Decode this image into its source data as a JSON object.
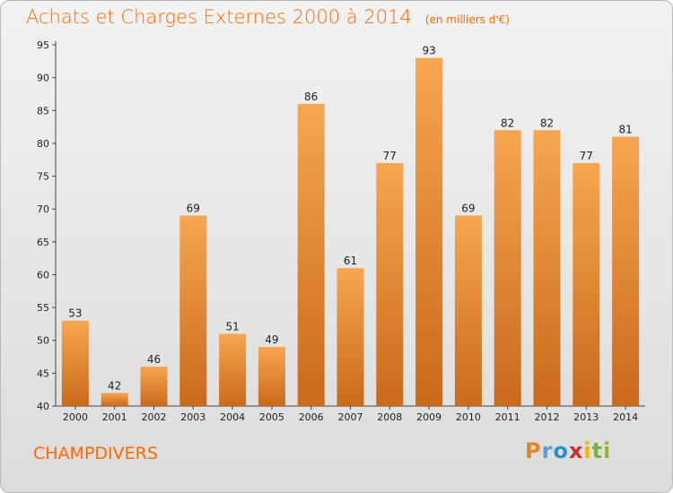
{
  "chart_data": {
    "type": "bar",
    "title": "Achats et Charges Externes 2000 à 2014",
    "subtitle": "(en milliers d'€)",
    "categories": [
      "2000",
      "2001",
      "2002",
      "2003",
      "2004",
      "2005",
      "2006",
      "2007",
      "2008",
      "2009",
      "2010",
      "2011",
      "2012",
      "2013",
      "2014"
    ],
    "values": [
      53,
      42,
      46,
      69,
      51,
      49,
      86,
      61,
      77,
      93,
      69,
      82,
      82,
      77,
      81
    ],
    "ylim": [
      40,
      95
    ],
    "yticks": [
      40,
      45,
      50,
      55,
      60,
      65,
      70,
      75,
      80,
      85,
      90,
      95
    ],
    "grid": false,
    "xlabel": "",
    "ylabel": ""
  },
  "commune": "CHAMPDIVERS",
  "logo": {
    "letters": [
      "P",
      "r",
      "o",
      "x",
      "i",
      "t",
      "i"
    ],
    "colors": [
      "#e8822a",
      "#5b9bd5",
      "#2e8fd0",
      "#c9302c",
      "#f2b705",
      "#78b13f",
      "#8ab83a"
    ]
  },
  "colors": {
    "bar_light": "#f7a64f",
    "bar_dark": "#c96a1a",
    "accent": "#ff6a00"
  }
}
